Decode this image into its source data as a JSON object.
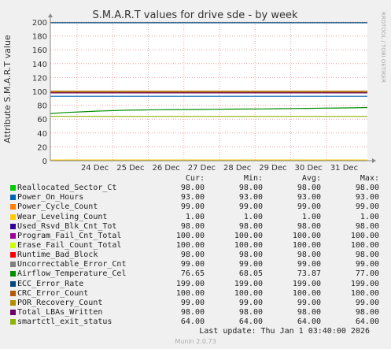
{
  "chart_data": {
    "type": "line",
    "title": "S.M.A.R.T values for drive sde - by week",
    "ylabel": "Attribute S.M.A.R.T value",
    "ylim": [
      0,
      200
    ],
    "yticks": [
      0,
      20,
      40,
      60,
      80,
      100,
      120,
      140,
      160,
      180,
      200
    ],
    "xlim": [
      "2025-12-23T06:00",
      "2026-01-01T03:40"
    ],
    "xticks": [
      {
        "label": "24 Dec",
        "at": "2025-12-24"
      },
      {
        "label": "25 Dec",
        "at": "2025-12-25"
      },
      {
        "label": "26 Dec",
        "at": "2025-12-26"
      },
      {
        "label": "27 Dec",
        "at": "2025-12-27"
      },
      {
        "label": "28 Dec",
        "at": "2025-12-28"
      },
      {
        "label": "29 Dec",
        "at": "2025-12-29"
      },
      {
        "label": "30 Dec",
        "at": "2025-12-30"
      },
      {
        "label": "31 Dec",
        "at": "2025-12-31"
      }
    ],
    "grid": true,
    "series": [
      {
        "name": "Reallocated_Sector_Ct",
        "color": "#00cc00",
        "cur": "98.00",
        "min": "98.00",
        "avg": "98.00",
        "max": "98.00",
        "values": [
          98,
          98
        ]
      },
      {
        "name": "Power_On_Hours",
        "color": "#0066b3",
        "cur": "93.00",
        "min": "93.00",
        "avg": "93.00",
        "max": "93.00",
        "values": [
          93,
          93
        ]
      },
      {
        "name": "Power_Cycle_Count",
        "color": "#ff8000",
        "cur": "99.00",
        "min": "99.00",
        "avg": "99.00",
        "max": "99.00",
        "values": [
          99,
          99
        ]
      },
      {
        "name": "Wear_Leveling_Count",
        "color": "#ffcc00",
        "cur": "1.00",
        "min": "1.00",
        "avg": "1.00",
        "max": "1.00",
        "values": [
          1,
          1
        ]
      },
      {
        "name": "Used_Rsvd_Blk_Cnt_Tot",
        "color": "#330099",
        "cur": "98.00",
        "min": "98.00",
        "avg": "98.00",
        "max": "98.00",
        "values": [
          98,
          98
        ]
      },
      {
        "name": "Program_Fail_Cnt_Total",
        "color": "#990099",
        "cur": "100.00",
        "min": "100.00",
        "avg": "100.00",
        "max": "100.00",
        "values": [
          100,
          100
        ]
      },
      {
        "name": "Erase_Fail_Count_Total",
        "color": "#ccff00",
        "cur": "100.00",
        "min": "100.00",
        "avg": "100.00",
        "max": "100.00",
        "values": [
          100,
          100
        ]
      },
      {
        "name": "Runtime_Bad_Block",
        "color": "#ff0000",
        "cur": "98.00",
        "min": "98.00",
        "avg": "98.00",
        "max": "98.00",
        "values": [
          98,
          98
        ]
      },
      {
        "name": "Uncorrectable_Error_Cnt",
        "color": "#808080",
        "cur": "99.00",
        "min": "99.00",
        "avg": "99.00",
        "max": "99.00",
        "values": [
          99,
          99
        ]
      },
      {
        "name": "Airflow_Temperature_Cel",
        "color": "#008f00",
        "cur": "76.65",
        "min": "68.05",
        "avg": "73.87",
        "max": "77.00",
        "values": [
          68.05,
          69.5,
          70.5,
          71.5,
          72.2,
          72.8,
          73.2,
          73.5,
          73.7,
          73.9,
          74.0,
          74.2,
          74.4,
          74.5,
          74.7,
          75.0,
          75.2,
          75.5,
          75.8,
          76.0,
          76.3,
          76.65
        ]
      },
      {
        "name": "ECC_Error_Rate",
        "color": "#00487d",
        "cur": "199.00",
        "min": "199.00",
        "avg": "199.00",
        "max": "199.00",
        "values": [
          199,
          199
        ]
      },
      {
        "name": "CRC_Error_Count",
        "color": "#b35a00",
        "cur": "100.00",
        "min": "100.00",
        "avg": "100.00",
        "max": "100.00",
        "values": [
          100,
          100
        ]
      },
      {
        "name": "POR_Recovery_Count",
        "color": "#b38f00",
        "cur": "99.00",
        "min": "99.00",
        "avg": "99.00",
        "max": "99.00",
        "values": [
          99,
          99
        ]
      },
      {
        "name": "Total_LBAs_Written",
        "color": "#6b006b",
        "cur": "98.00",
        "min": "98.00",
        "avg": "98.00",
        "max": "98.00",
        "values": [
          98,
          98
        ]
      },
      {
        "name": "smartctl_exit_status",
        "color": "#8fb300",
        "cur": "64.00",
        "min": "64.00",
        "avg": "64.00",
        "max": "64.00",
        "values": [
          64,
          64
        ]
      }
    ]
  },
  "legend_headers": {
    "cur": "Cur:",
    "min": "Min:",
    "avg": "Avg:",
    "max": "Max:"
  },
  "last_update": "Last update: Thu Jan  1 03:40:00 2026",
  "watermark": "RRDTOOL / TOBI OETIKER",
  "munin_version": "Munin 2.0.73"
}
